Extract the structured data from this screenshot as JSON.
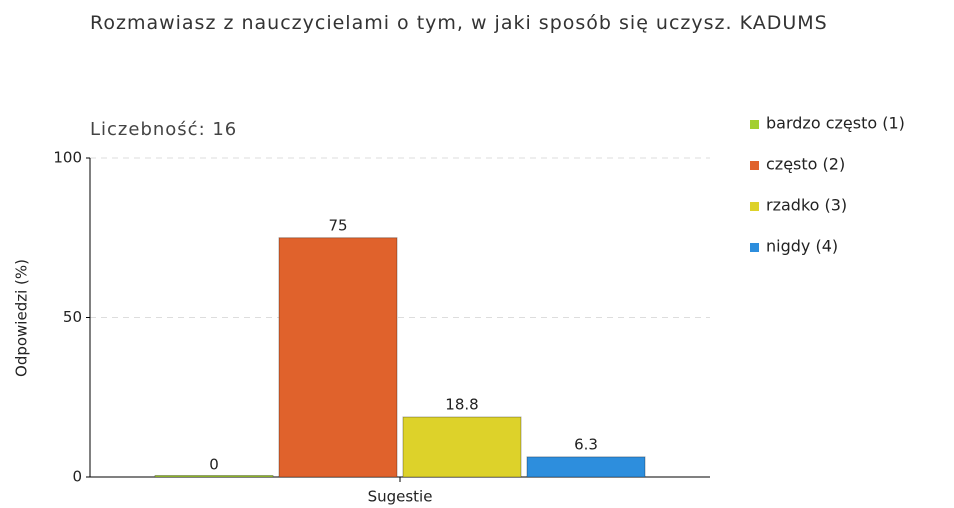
{
  "chart_data": {
    "type": "bar",
    "title": "Rozmawiasz z nauczycielami o tym, w jaki sposób się uczysz. KADUMS",
    "subtitle": "Liczebność: 16",
    "y_label": "Odpowiedzi (%)",
    "categories": [
      "Sugestie"
    ],
    "series": [
      {
        "name": "bardzo często (1)",
        "color": "#a3cf2f",
        "values": [
          0
        ]
      },
      {
        "name": "często (2)",
        "color": "#e0622c",
        "values": [
          75
        ]
      },
      {
        "name": "rzadko (3)",
        "color": "#ddd22a",
        "values": [
          18.8
        ]
      },
      {
        "name": "nigdy (4)",
        "color": "#2d8edd",
        "values": [
          6.3
        ]
      }
    ],
    "ylim": [
      0,
      100
    ],
    "yticks": [
      0,
      50,
      100
    ],
    "grid": true,
    "legend": "right"
  }
}
